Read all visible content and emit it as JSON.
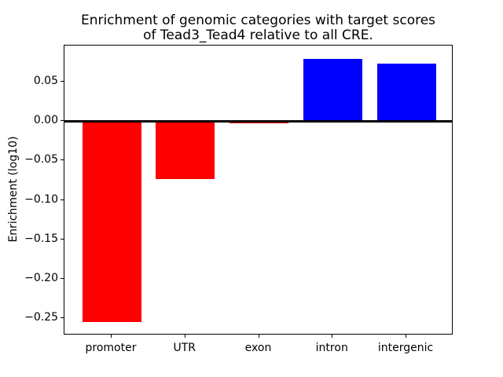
{
  "chart_data": {
    "type": "bar",
    "title": "Enrichment of genomic categories with target scores\nof Tead3_Tead4 relative to all CRE.",
    "xlabel": "",
    "ylabel": "Enrichment (log10)",
    "categories": [
      "promoter",
      "UTR",
      "exon",
      "intron",
      "intergenic"
    ],
    "values": [
      -0.2555,
      -0.0738,
      -0.0025,
      0.0795,
      0.0735
    ],
    "bar_colors": [
      "#ff0000",
      "#ff0000",
      "#ff0000",
      "#0000ff",
      "#0000ff"
    ],
    "negative_color": "#ff0000",
    "positive_color": "#0000ff",
    "bar_width": 0.8,
    "xlim": [
      -0.64,
      4.64
    ],
    "ylim": [
      -0.2723,
      0.0963
    ],
    "yticks": [
      {
        "value": 0.05,
        "label": "0.05"
      },
      {
        "value": 0.0,
        "label": "0.00"
      },
      {
        "value": -0.05,
        "label": "−0.05"
      },
      {
        "value": -0.1,
        "label": "−0.10"
      },
      {
        "value": -0.15,
        "label": "−0.15"
      },
      {
        "value": -0.2,
        "label": "−0.20"
      },
      {
        "value": -0.25,
        "label": "−0.25"
      }
    ],
    "zero_line": {
      "value": 0.0,
      "color": "#000000",
      "thickness_px": 3
    },
    "grid": false,
    "legend": false,
    "background": "#ffffff",
    "axis_color": "#000000"
  }
}
